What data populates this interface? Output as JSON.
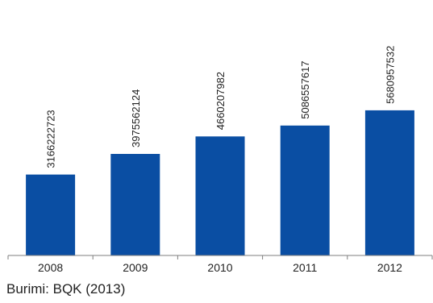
{
  "chart_data": {
    "type": "bar",
    "categories": [
      "2008",
      "2009",
      "2010",
      "2011",
      "2012"
    ],
    "values": [
      3166222723,
      3975562124,
      4660207982,
      5086557617,
      5680957532
    ],
    "value_labels": [
      "3166222723",
      "3975562124",
      "4660207982",
      "5086557617",
      "5680957532"
    ],
    "title": "",
    "xlabel": "",
    "ylabel": "",
    "ylim": [
      0,
      10000000000
    ],
    "grid": false,
    "legend": "none",
    "bar_color": "#0a4ea3",
    "axis_color": "#7f7f7f"
  },
  "source": {
    "text": "Burimi: BQK (2013)"
  }
}
